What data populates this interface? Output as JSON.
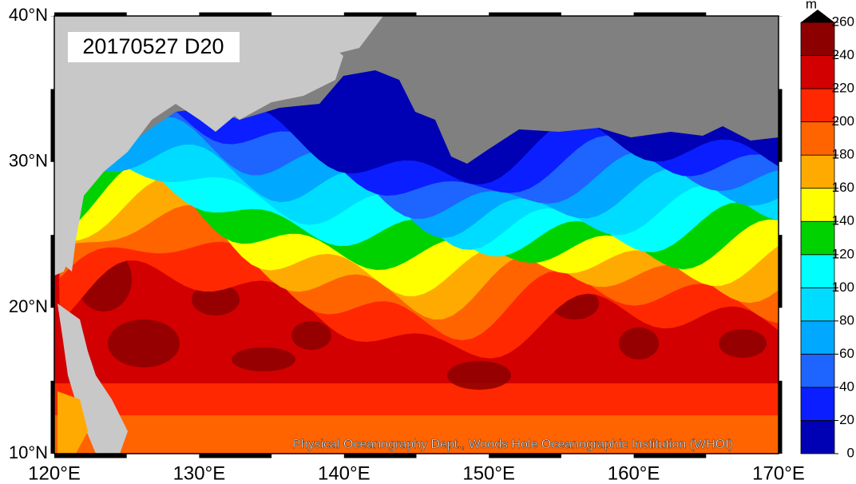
{
  "map": {
    "title": "20170527 D20",
    "credit": "Physical Oceanography Dept., Woods Hole Oceanographic Institution (WHOI)",
    "lon_range": [
      120,
      170
    ],
    "lat_range": [
      10,
      40
    ],
    "lon_ticks": [
      {
        "value": 120,
        "label": "120°E"
      },
      {
        "value": 130,
        "label": "130°E"
      },
      {
        "value": 140,
        "label": "140°E"
      },
      {
        "value": 150,
        "label": "150°E"
      },
      {
        "value": 160,
        "label": "160°E"
      },
      {
        "value": 170,
        "label": "170°E"
      }
    ],
    "lat_ticks": [
      {
        "value": 10,
        "label": "10°N"
      },
      {
        "value": 20,
        "label": "20°N"
      },
      {
        "value": 30,
        "label": "30°N"
      },
      {
        "value": 40,
        "label": "40°N"
      }
    ],
    "colorbar": {
      "unit": "m",
      "range": [
        0,
        260
      ],
      "ticks": [
        0,
        20,
        40,
        60,
        80,
        100,
        120,
        140,
        160,
        180,
        200,
        220,
        240,
        260
      ],
      "colors": [
        "#0000b4",
        "#0a1eff",
        "#1e64ff",
        "#00a8ff",
        "#00dcff",
        "#00ffff",
        "#00d200",
        "#ffff00",
        "#ffaa00",
        "#ff6400",
        "#ff2800",
        "#d20000",
        "#8c0000"
      ]
    }
  }
}
